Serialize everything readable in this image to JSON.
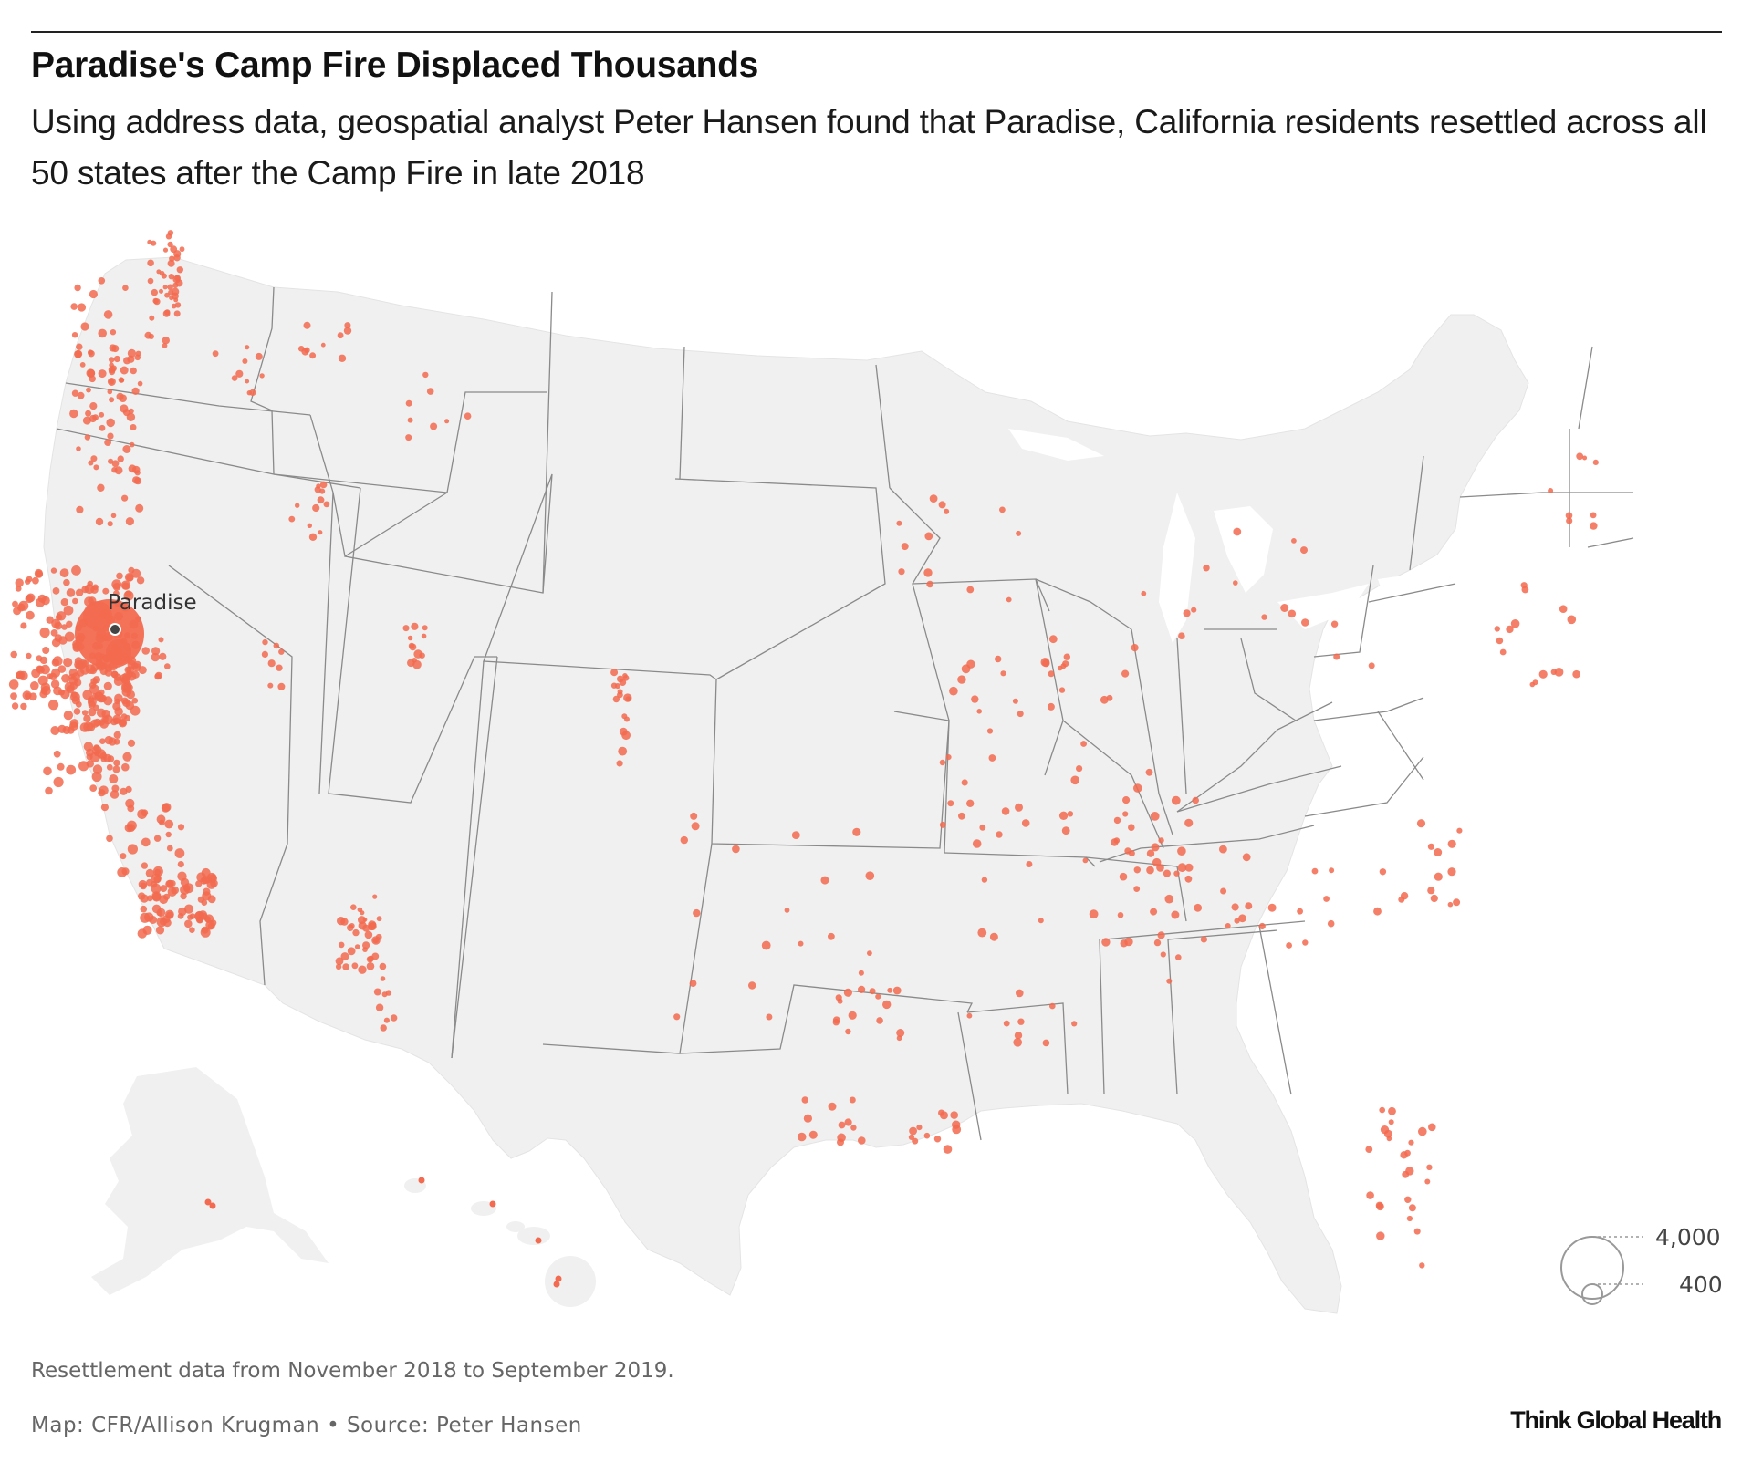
{
  "header": {
    "title": "Paradise's Camp Fire Displaced Thousands",
    "subtitle": "Using address data, geospatial analyst Peter Hansen found that Paradise, California residents resettled across all 50 states after the Camp Fire in late 2018"
  },
  "map": {
    "origin_label": "Paradise",
    "dot_color": "#f26a4f",
    "land_color": "#f0f0f0",
    "border_color": "#888888"
  },
  "legend": {
    "large_label": "4,000",
    "small_label": "400"
  },
  "footer": {
    "note": "Resettlement data from November 2018 to September 2019.",
    "credit": "Map: CFR/Allison Krugman • Source: Peter Hansen",
    "logo": "Think Global Health"
  }
}
